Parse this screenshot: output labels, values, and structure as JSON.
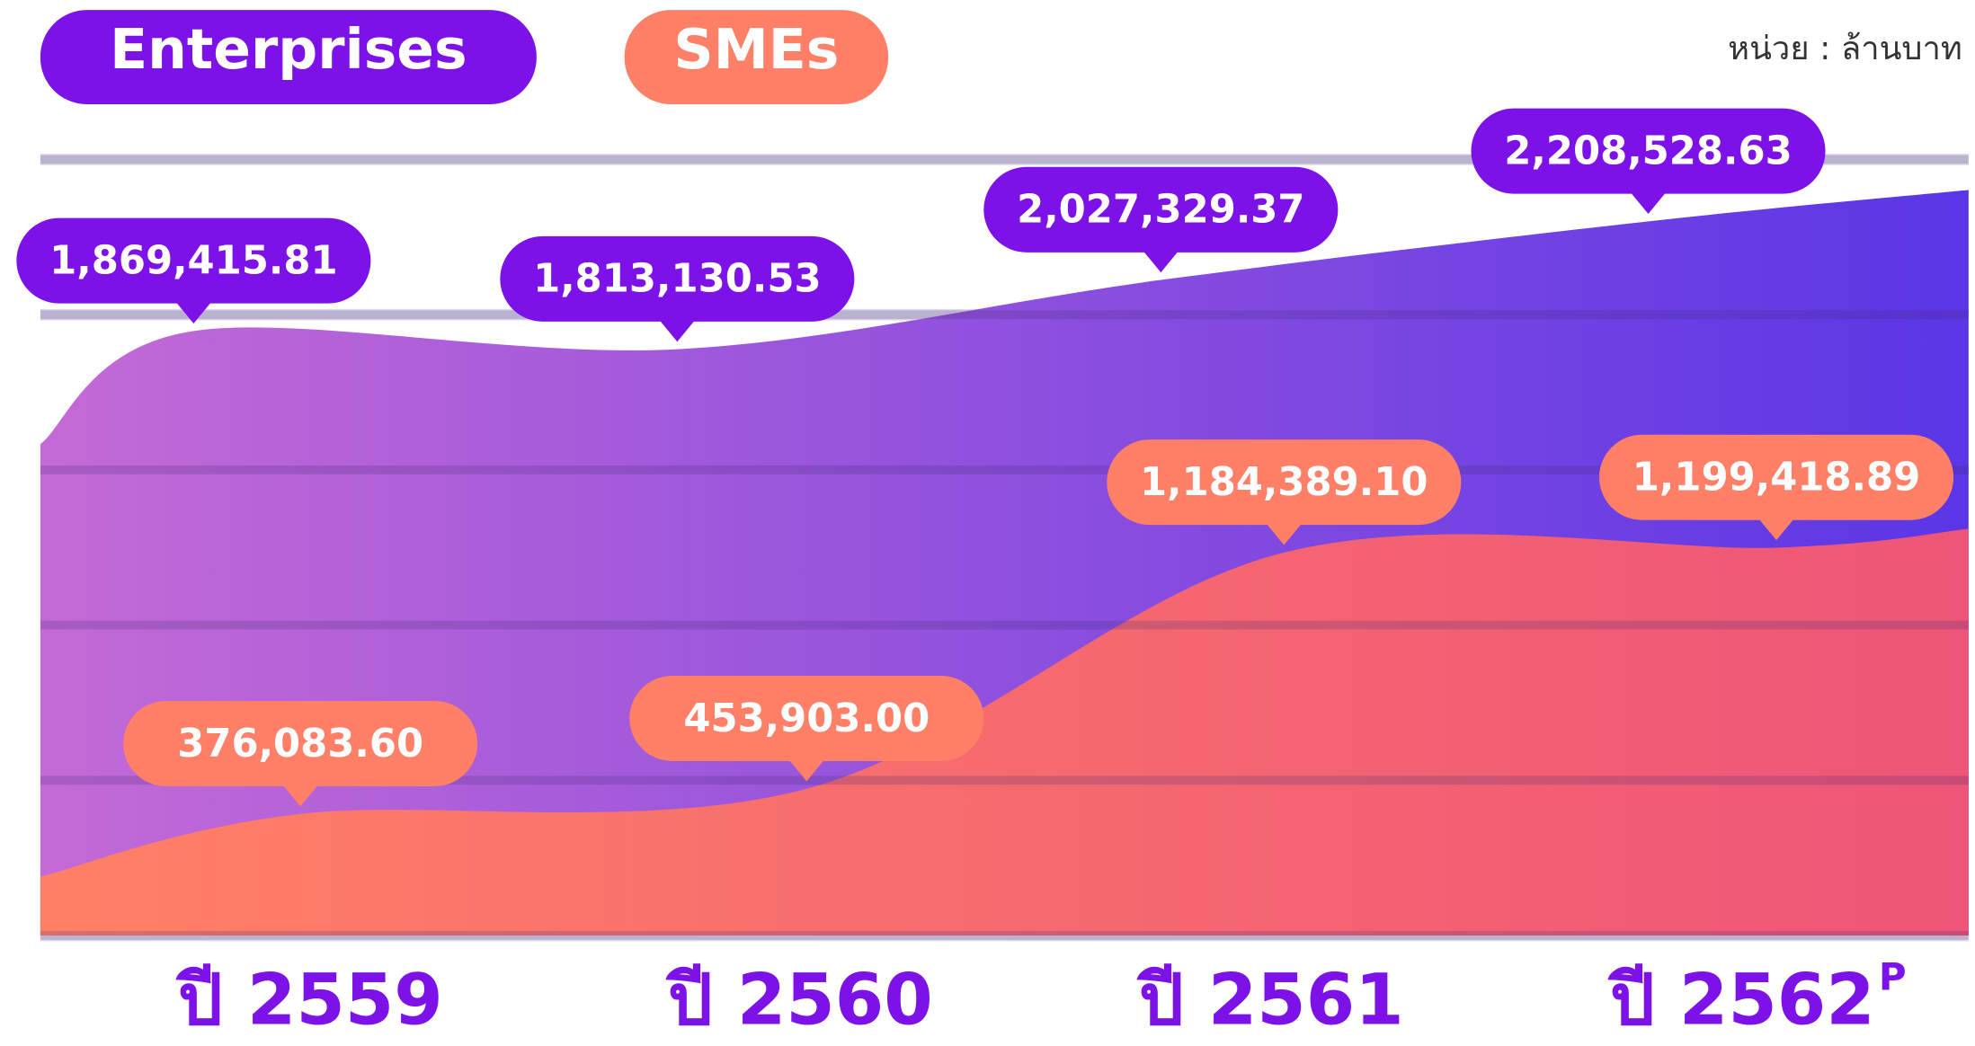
{
  "chart_data": {
    "type": "area",
    "unit": "หน่วย : ล้านบาท",
    "categories": [
      "ปี 2559",
      "ปี 2560",
      "ปี 2561",
      "ปี 2562"
    ],
    "category_note": "P",
    "series": [
      {
        "name": "Enterprises",
        "color": "#7c12e8",
        "values": [
          1869415.81,
          1813130.53,
          2027329.37,
          2208528.63
        ],
        "value_labels": [
          "1,869,415.81",
          "1,813,130.53",
          "2,027,329.37",
          "2,208,528.63"
        ]
      },
      {
        "name": "SMEs",
        "color": "#ff7f67",
        "values": [
          376083.6,
          453903.0,
          1184389.1,
          1199418.89
        ],
        "value_labels": [
          "376,083.60",
          "453,903.00",
          "1,184,389.10",
          "1,199,418.89"
        ]
      }
    ],
    "ylim": [
      0,
      2400000
    ],
    "yticks": [
      0,
      480000,
      960000,
      1440000,
      1920000,
      2400000
    ],
    "grid": true
  }
}
